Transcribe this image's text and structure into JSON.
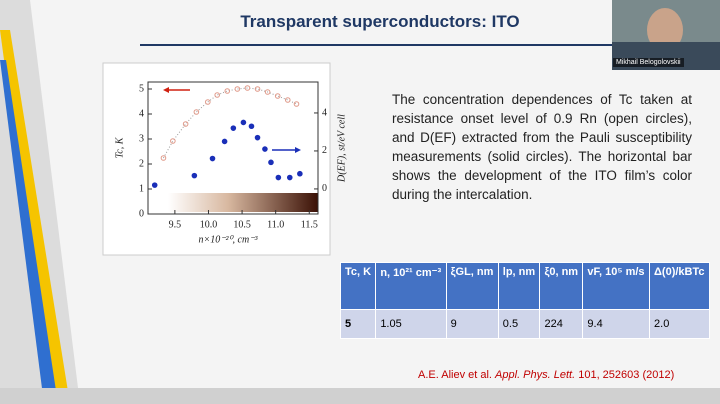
{
  "speaker": "Mikhail Belogolovskii",
  "title": "Transparent superconductors: ITO",
  "text": "The concentration dependences of Tc taken at resistance onset level of 0.9 Rn (open circles), and D(EF) extracted from the Pauli susceptibility measurements (solid circles). The horizontal bar shows the development of the ITO film’s color during the intercalation.",
  "figure": {
    "type": "scatter",
    "xlabel": "n×10⁻²⁰, cm⁻³",
    "ylabel": "Tc, K",
    "y2label": "D(EF), st/eV cell",
    "xlim": [
      9.1,
      11.63
    ],
    "xticks": [
      9.5,
      {
        "value": 10,
        "label": "10.0"
      },
      10.5,
      {
        "value": 11,
        "label": "11.0"
      },
      11.5
    ],
    "ylim": [
      0,
      5.28
    ],
    "yticks": [
      0,
      1,
      2,
      3,
      4,
      5
    ],
    "y2lim": [
      -1.32,
      5.63
    ],
    "y2ticks": [
      0,
      2,
      4
    ],
    "series": [
      {
        "color": "#e09a8a",
        "marker": "open",
        "line": "dotted",
        "x": [
          9.33,
          9.47,
          9.66,
          9.82,
          9.99,
          10.13,
          10.28,
          10.43,
          10.58,
          10.73,
          10.88,
          11.03,
          11.18,
          11.31
        ],
        "values": [
          2.24,
          2.92,
          3.6,
          4.08,
          4.48,
          4.76,
          4.92,
          5.0,
          5.04,
          5.0,
          4.88,
          4.72,
          4.56,
          4.4
        ]
      },
      {
        "color": "#1a2fb8",
        "marker": "solid",
        "axis": "y2",
        "x": [
          9.2,
          9.79,
          10.06,
          10.24,
          10.37,
          10.52,
          10.64,
          10.73,
          10.84,
          10.93,
          11.04,
          11.21,
          11.36
        ],
        "values": [
          0.2,
          0.7,
          1.6,
          2.5,
          3.2,
          3.5,
          3.3,
          2.7,
          2.1,
          1.4,
          0.6,
          0.6,
          0.8
        ]
      }
    ]
  },
  "table": {
    "header": [
      "Tc, K",
      "n, 10²¹ cm⁻³",
      "ξGL, nm",
      "lp, nm",
      "ξ0, nm",
      "vF, 10⁵ m/s",
      "Δ(0)/kBTc"
    ],
    "rows": [
      [
        "5",
        "1.05",
        "9",
        "0.5",
        "224",
        "9.4",
        "2.0"
      ]
    ]
  },
  "citation": {
    "authors": "A.E. Aliev et al.",
    "journal": "Appl. Phys. Lett.",
    "ref": "101, 252603 (2012)"
  }
}
